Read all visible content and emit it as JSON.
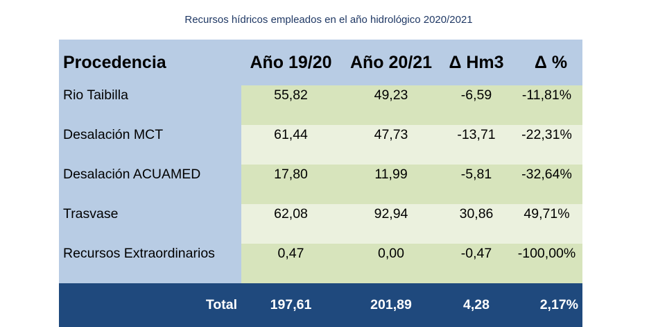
{
  "title": "Recursos hídricos empleados en el año hidrológico 2020/2021",
  "headers": [
    "Procedencia",
    "Año 19/20",
    "Año 20/21",
    "Δ Hm3",
    "Δ %"
  ],
  "rows": [
    {
      "label": "Rio Taibilla",
      "v1920": "55,82",
      "v2021": "49,23",
      "dhm3": "-6,59",
      "dpct": "-11,81%"
    },
    {
      "label": "Desalación MCT",
      "v1920": "61,44",
      "v2021": "47,73",
      "dhm3": "-13,71",
      "dpct": "-22,31%"
    },
    {
      "label": "Desalación ACUAMED",
      "v1920": "17,80",
      "v2021": "11,99",
      "dhm3": "-5,81",
      "dpct": "-32,64%"
    },
    {
      "label": "Trasvase",
      "v1920": "62,08",
      "v2021": "92,94",
      "dhm3": "30,86",
      "dpct": "49,71%"
    },
    {
      "label": "Recursos Extraordinarios",
      "v1920": "0,47",
      "v2021": "0,00",
      "dhm3": "-0,47",
      "dpct": "-100,00%"
    }
  ],
  "total": {
    "label": "Total",
    "v1920": "197,61",
    "v2021": "201,89",
    "dhm3": "4,28",
    "dpct": "2,17%"
  },
  "colors": {
    "header_bg": "#b8cce4",
    "row_dark": "#d7e4bc",
    "row_light": "#ebf1de",
    "total_bg": "#1f497d",
    "title_text": "#1f3864"
  },
  "chart_data": {
    "type": "table",
    "title": "Recursos hídricos empleados en el año hidrológico 2020/2021",
    "columns": [
      "Procedencia",
      "Año 19/20",
      "Año 20/21",
      "Δ Hm3",
      "Δ %"
    ],
    "rows": [
      [
        "Rio Taibilla",
        55.82,
        49.23,
        -6.59,
        -11.81
      ],
      [
        "Desalación MCT",
        61.44,
        47.73,
        -13.71,
        -22.31
      ],
      [
        "Desalación ACUAMED",
        17.8,
        11.99,
        -5.81,
        -32.64
      ],
      [
        "Trasvase",
        62.08,
        92.94,
        30.86,
        49.71
      ],
      [
        "Recursos Extraordinarios",
        0.47,
        0.0,
        -0.47,
        -100.0
      ]
    ],
    "total": [
      "Total",
      197.61,
      201.89,
      4.28,
      2.17
    ]
  }
}
